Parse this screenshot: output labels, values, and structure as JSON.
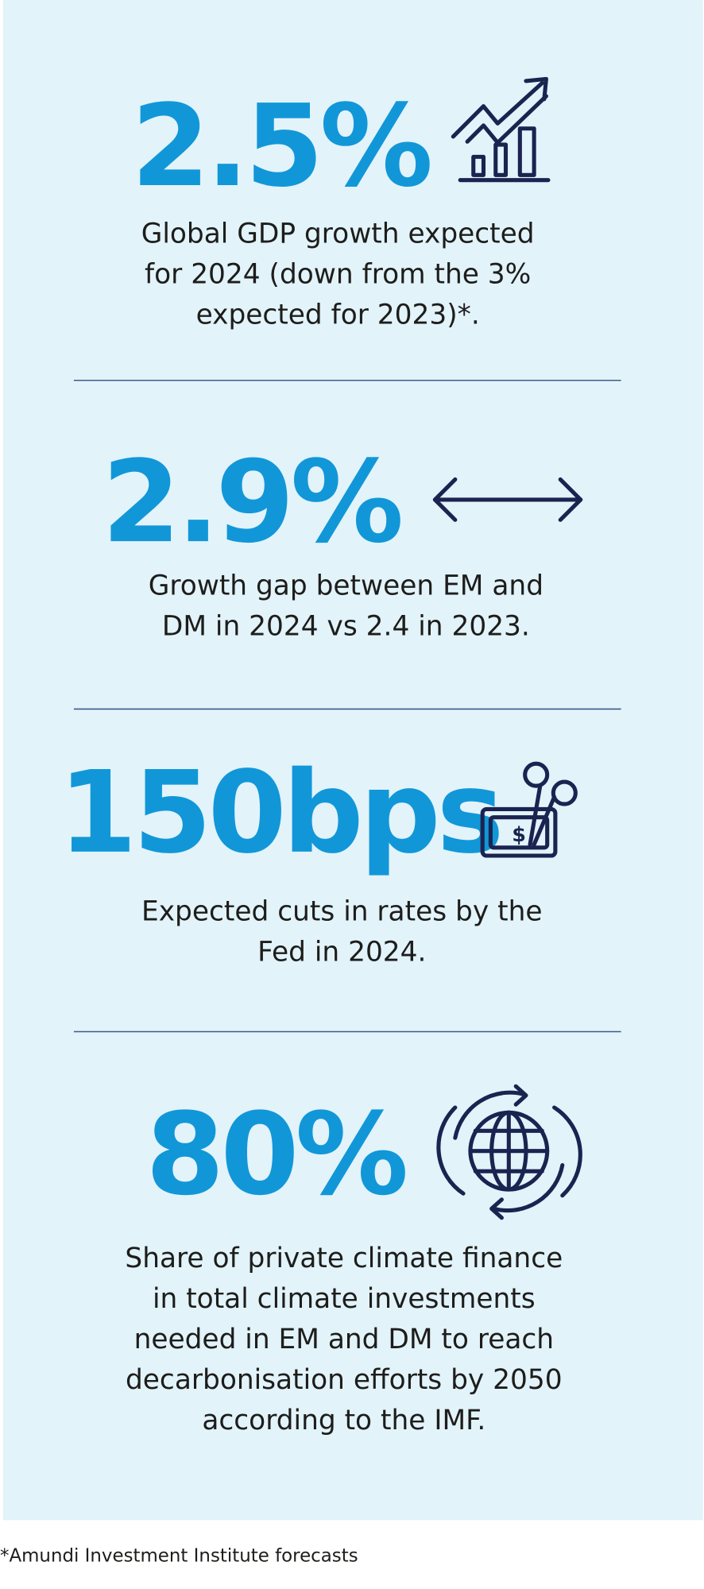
{
  "stats": [
    {
      "value": "2.5%",
      "lines": [
        "Global GDP growth expected",
        "for 2024 (down from the 3%",
        "expected for 2023)*."
      ]
    },
    {
      "value": "2.9%",
      "lines": [
        "Growth gap between EM and",
        "DM in 2024 vs 2.4 in 2023."
      ]
    },
    {
      "value": "150bps",
      "lines": [
        "Expected cuts in rates by the",
        "Fed in 2024."
      ]
    },
    {
      "value": "80%",
      "lines": [
        "Share of private climate finance",
        "in total climate investments",
        "needed in EM and DM to reach",
        "decarbonisation efforts by 2050",
        "according to the IMF."
      ]
    }
  ],
  "footnote": "*Amundi Investment Institute forecasts"
}
